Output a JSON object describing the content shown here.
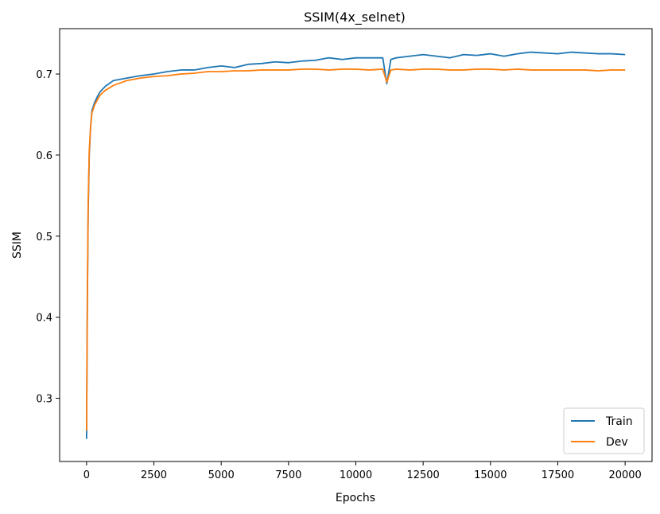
{
  "chart_data": {
    "type": "line",
    "title": "SSIM(4x_selnet)",
    "xlabel": "Epochs",
    "ylabel": "SSIM",
    "xlim": [
      -1000,
      21000
    ],
    "ylim": [
      0.222,
      0.756
    ],
    "xticks": [
      0,
      2500,
      5000,
      7500,
      10000,
      12500,
      15000,
      17500,
      20000
    ],
    "yticks": [
      0.3,
      0.4,
      0.5,
      0.6,
      0.7
    ],
    "ytick_labels": [
      "0.3",
      "0.4",
      "0.5",
      "0.6",
      "0.7"
    ],
    "grid": false,
    "legend_position": "lower-right",
    "series": [
      {
        "name": "Train",
        "color": "#1f77b4",
        "x": [
          0,
          30,
          60,
          100,
          150,
          200,
          300,
          400,
          500,
          700,
          1000,
          1500,
          2000,
          2500,
          3000,
          3500,
          4000,
          4500,
          5000,
          5500,
          6000,
          6500,
          7000,
          7500,
          8000,
          8500,
          9000,
          9500,
          10000,
          10500,
          11000,
          11150,
          11300,
          11500,
          12000,
          12500,
          13000,
          13500,
          14000,
          14500,
          15000,
          15500,
          16000,
          16500,
          17000,
          17500,
          18000,
          18500,
          19000,
          19500,
          20000
        ],
        "y": [
          0.25,
          0.42,
          0.53,
          0.6,
          0.635,
          0.655,
          0.665,
          0.672,
          0.678,
          0.685,
          0.692,
          0.695,
          0.698,
          0.7,
          0.703,
          0.705,
          0.705,
          0.708,
          0.71,
          0.708,
          0.712,
          0.713,
          0.715,
          0.714,
          0.716,
          0.717,
          0.72,
          0.718,
          0.72,
          0.72,
          0.72,
          0.688,
          0.718,
          0.72,
          0.722,
          0.724,
          0.722,
          0.72,
          0.724,
          0.723,
          0.725,
          0.722,
          0.725,
          0.727,
          0.726,
          0.725,
          0.727,
          0.726,
          0.725,
          0.725,
          0.724
        ]
      },
      {
        "name": "Dev",
        "color": "#ff7f0e",
        "x": [
          0,
          30,
          60,
          100,
          150,
          200,
          300,
          400,
          500,
          700,
          1000,
          1500,
          2000,
          2500,
          3000,
          3500,
          4000,
          4500,
          5000,
          5500,
          6000,
          6500,
          7000,
          7500,
          8000,
          8500,
          9000,
          9500,
          10000,
          10500,
          11000,
          11150,
          11300,
          11500,
          12000,
          12500,
          13000,
          13500,
          14000,
          14500,
          15000,
          15500,
          16000,
          16500,
          17000,
          17500,
          18000,
          18500,
          19000,
          19500,
          20000
        ],
        "y": [
          0.26,
          0.43,
          0.54,
          0.605,
          0.635,
          0.652,
          0.662,
          0.668,
          0.674,
          0.68,
          0.686,
          0.692,
          0.695,
          0.697,
          0.698,
          0.7,
          0.701,
          0.703,
          0.703,
          0.704,
          0.704,
          0.705,
          0.705,
          0.705,
          0.706,
          0.706,
          0.705,
          0.706,
          0.706,
          0.705,
          0.706,
          0.69,
          0.705,
          0.706,
          0.705,
          0.706,
          0.706,
          0.705,
          0.705,
          0.706,
          0.706,
          0.705,
          0.706,
          0.705,
          0.705,
          0.705,
          0.705,
          0.705,
          0.704,
          0.705,
          0.705
        ]
      }
    ]
  }
}
